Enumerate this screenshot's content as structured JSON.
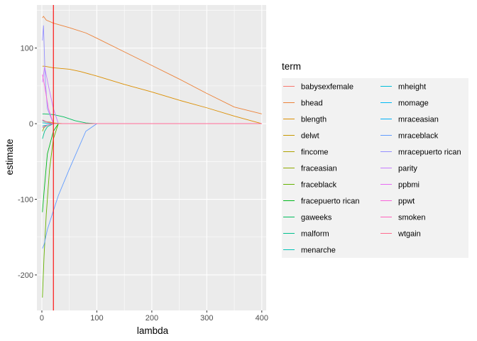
{
  "chart_data": {
    "type": "line",
    "xlabel": "lambda",
    "ylabel": "estimate",
    "xlim": [
      -9,
      408
    ],
    "ylim": [
      -247,
      157
    ],
    "x_ticks": [
      0,
      100,
      200,
      300,
      400
    ],
    "x_tick_labels": [
      "0",
      "100",
      "200",
      "300",
      "400"
    ],
    "y_ticks": [
      -200,
      -100,
      0,
      100
    ],
    "y_tick_labels": [
      "-200",
      "-100",
      "0",
      "100"
    ],
    "grid": true,
    "legend_title": "term",
    "legend_position": "right",
    "vline": {
      "x": 21,
      "color": "#FF0000"
    },
    "series": [
      {
        "name": "babysexfemale",
        "color": "#F8766D",
        "points": [
          [
            1,
            1
          ],
          [
            5,
            1
          ],
          [
            10,
            0.5
          ],
          [
            21,
            0
          ],
          [
            400,
            0
          ]
        ]
      },
      {
        "name": "bhead",
        "color": "#EC8239",
        "points": [
          [
            1,
            140
          ],
          [
            3,
            142
          ],
          [
            8,
            137
          ],
          [
            21,
            133
          ],
          [
            50,
            127
          ],
          [
            80,
            120
          ],
          [
            100,
            113
          ],
          [
            150,
            95
          ],
          [
            200,
            77
          ],
          [
            250,
            59
          ],
          [
            300,
            40
          ],
          [
            350,
            22
          ],
          [
            400,
            13
          ]
        ]
      },
      {
        "name": "blength",
        "color": "#DB8E00",
        "points": [
          [
            1,
            76
          ],
          [
            5,
            76
          ],
          [
            20,
            74
          ],
          [
            50,
            72
          ],
          [
            70,
            69
          ],
          [
            100,
            63
          ],
          [
            150,
            52
          ],
          [
            200,
            42
          ],
          [
            250,
            31
          ],
          [
            300,
            21
          ],
          [
            350,
            10
          ],
          [
            400,
            0
          ]
        ]
      },
      {
        "name": "delwt",
        "color": "#C79800",
        "points": [
          [
            1,
            4
          ],
          [
            5,
            3
          ],
          [
            15,
            2
          ],
          [
            21,
            1
          ],
          [
            40,
            0
          ],
          [
            400,
            0
          ]
        ]
      },
      {
        "name": "fincome",
        "color": "#AEA200",
        "points": [
          [
            1,
            1
          ],
          [
            5,
            1
          ],
          [
            21,
            0
          ],
          [
            400,
            0
          ]
        ]
      },
      {
        "name": "fraceasian",
        "color": "#8FAA00",
        "points": [
          [
            1,
            -10
          ],
          [
            4,
            -5
          ],
          [
            10,
            -2
          ],
          [
            21,
            0
          ],
          [
            400,
            0
          ]
        ]
      },
      {
        "name": "fraceblack",
        "color": "#64B200",
        "points": [
          [
            1,
            -230
          ],
          [
            4,
            -175
          ],
          [
            8,
            -120
          ],
          [
            14,
            -60
          ],
          [
            21,
            -20
          ],
          [
            30,
            0
          ],
          [
            400,
            0
          ]
        ]
      },
      {
        "name": "fracepuerto rican",
        "color": "#00B81B",
        "points": [
          [
            1,
            -117
          ],
          [
            4,
            -90
          ],
          [
            10,
            -40
          ],
          [
            21,
            -10
          ],
          [
            30,
            0
          ],
          [
            400,
            0
          ]
        ]
      },
      {
        "name": "gaweeks",
        "color": "#00BD5C",
        "points": [
          [
            1,
            13
          ],
          [
            5,
            13
          ],
          [
            21,
            12
          ],
          [
            40,
            9
          ],
          [
            60,
            4
          ],
          [
            80,
            1
          ],
          [
            100,
            0
          ],
          [
            400,
            0
          ]
        ]
      },
      {
        "name": "malform",
        "color": "#00C08E",
        "points": [
          [
            1,
            -20
          ],
          [
            5,
            -10
          ],
          [
            10,
            -4
          ],
          [
            21,
            0
          ],
          [
            400,
            0
          ]
        ]
      },
      {
        "name": "menarche",
        "color": "#00C1B7",
        "points": [
          [
            1,
            -3
          ],
          [
            8,
            -2
          ],
          [
            21,
            0
          ],
          [
            400,
            0
          ]
        ]
      },
      {
        "name": "mheight",
        "color": "#00BFDA",
        "points": [
          [
            1,
            4
          ],
          [
            10,
            2
          ],
          [
            21,
            0
          ],
          [
            400,
            0
          ]
        ]
      },
      {
        "name": "momage",
        "color": "#00BAF5",
        "points": [
          [
            1,
            1
          ],
          [
            21,
            0
          ],
          [
            400,
            0
          ]
        ]
      },
      {
        "name": "mraceasian",
        "color": "#00B0F6",
        "points": [
          [
            1,
            -5
          ],
          [
            10,
            -2
          ],
          [
            21,
            0
          ],
          [
            400,
            0
          ]
        ]
      },
      {
        "name": "mraceblack",
        "color": "#619CFF",
        "points": [
          [
            1,
            -165
          ],
          [
            4,
            -160
          ],
          [
            10,
            -140
          ],
          [
            21,
            -115
          ],
          [
            30,
            -95
          ],
          [
            50,
            -60
          ],
          [
            80,
            -10
          ],
          [
            100,
            0
          ],
          [
            400,
            0
          ]
        ]
      },
      {
        "name": "mracepuerto rican",
        "color": "#9590FF",
        "points": [
          [
            1,
            110
          ],
          [
            3,
            130
          ],
          [
            6,
            60
          ],
          [
            10,
            20
          ],
          [
            21,
            0
          ],
          [
            400,
            0
          ]
        ]
      },
      {
        "name": "parity",
        "color": "#C77CFF",
        "points": [
          [
            1,
            55
          ],
          [
            5,
            75
          ],
          [
            12,
            50
          ],
          [
            21,
            20
          ],
          [
            30,
            0
          ],
          [
            400,
            0
          ]
        ]
      },
      {
        "name": "ppbmi",
        "color": "#E76BF3",
        "points": [
          [
            1,
            5
          ],
          [
            10,
            2
          ],
          [
            21,
            0
          ],
          [
            400,
            0
          ]
        ]
      },
      {
        "name": "ppwt",
        "color": "#FA62DB",
        "points": [
          [
            1,
            65
          ],
          [
            5,
            50
          ],
          [
            12,
            20
          ],
          [
            21,
            0
          ],
          [
            400,
            0
          ]
        ]
      },
      {
        "name": "smoken",
        "color": "#FF62BC",
        "points": [
          [
            1,
            -5
          ],
          [
            10,
            -2
          ],
          [
            21,
            0
          ],
          [
            400,
            0
          ]
        ]
      },
      {
        "name": "wtgain",
        "color": "#FF6C90",
        "points": [
          [
            1,
            5
          ],
          [
            10,
            2
          ],
          [
            21,
            0
          ],
          [
            400,
            0
          ]
        ]
      }
    ]
  }
}
